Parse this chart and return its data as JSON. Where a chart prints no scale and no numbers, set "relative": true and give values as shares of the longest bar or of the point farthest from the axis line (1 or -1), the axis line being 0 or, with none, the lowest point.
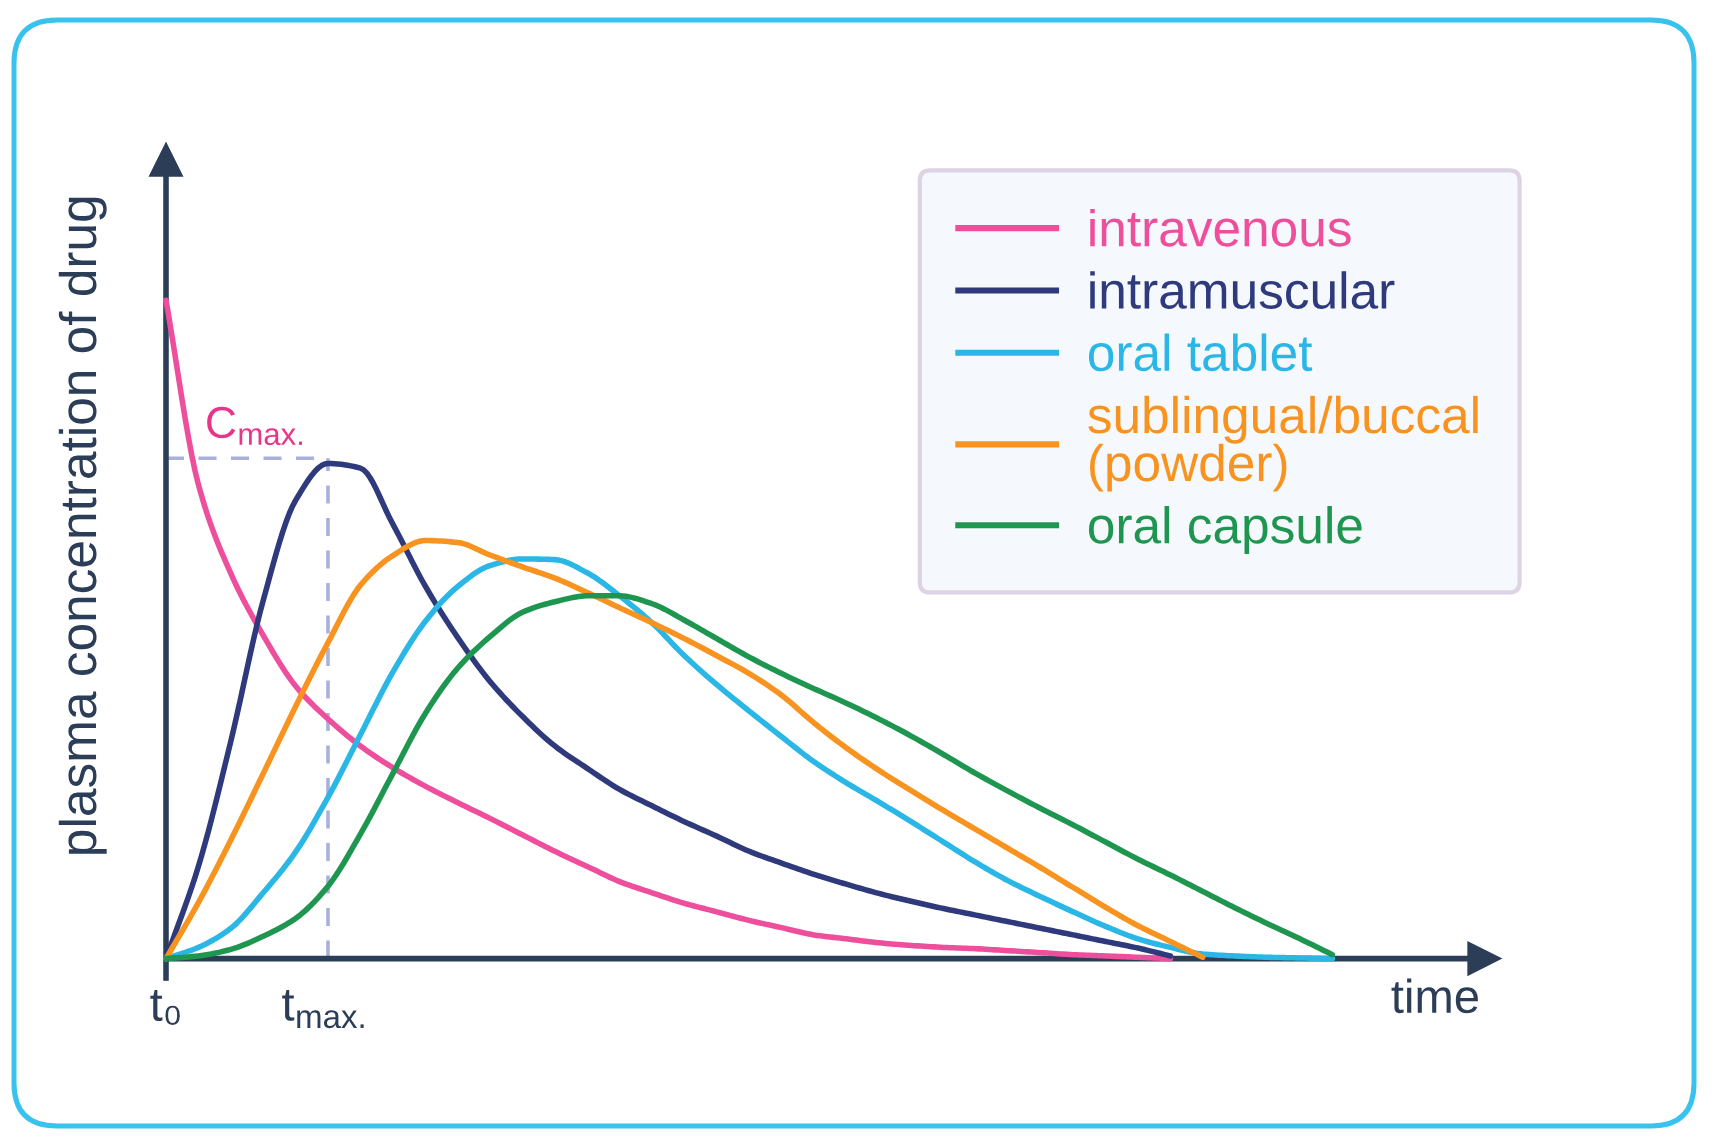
{
  "chart_data": {
    "type": "line",
    "relative": true,
    "xlabel": "time",
    "ylabel": "plasma concentration of drug",
    "categories": [
      "t₀",
      null,
      null,
      null,
      null,
      "t$_{max.}$",
      null,
      null,
      null,
      null,
      null,
      null,
      null,
      null,
      null,
      null,
      null,
      null,
      null,
      null,
      null,
      null,
      null,
      null,
      null,
      null,
      null,
      null,
      null,
      null,
      null,
      null,
      null,
      null,
      null,
      null,
      null
    ],
    "tick_labels": "x",
    "legend": "top right",
    "series": [
      {
        "name": "intravenous",
        "color": "#ee4f9c",
        "values": [
          1,
          0.72,
          0.585,
          0.491,
          0.414,
          0.364,
          0.323,
          0.29,
          0.262,
          0.237,
          0.213,
          0.188,
          0.163,
          0.14,
          0.117,
          0.1,
          0.084,
          0.071,
          0.058,
          0.047,
          0.036,
          0.03,
          0.024,
          0.02,
          0.017,
          0.015,
          0.012,
          0.009,
          0.006,
          0.004,
          0.002,
          0,
          null,
          null,
          null,
          null,
          null
        ]
      },
      {
        "name": "intramuscular",
        "color": "#2e3a7c",
        "values": [
          0,
          0.14,
          0.33,
          0.544,
          0.696,
          0.752,
          0.745,
          0.66,
          0.566,
          0.488,
          0.421,
          0.368,
          0.323,
          0.289,
          0.257,
          0.232,
          0.208,
          0.186,
          0.163,
          0.145,
          0.128,
          0.113,
          0.099,
          0.087,
          0.076,
          0.066,
          0.056,
          0.046,
          0.036,
          0.026,
          0.016,
          0.004,
          null,
          null,
          null,
          null,
          null
        ]
      },
      {
        "name": "oral tablet",
        "color": "#2ab7e6",
        "values": [
          0,
          0.017,
          0.046,
          0.1,
          0.162,
          0.245,
          0.34,
          0.435,
          0.512,
          0.565,
          0.597,
          0.607,
          0.606,
          0.586,
          0.551,
          0.51,
          0.46,
          0.416,
          0.376,
          0.337,
          0.299,
          0.267,
          0.238,
          0.208,
          0.177,
          0.146,
          0.118,
          0.094,
          0.071,
          0.049,
          0.03,
          0.017,
          0.007,
          0.004,
          0.002,
          0.001,
          0
        ]
      },
      {
        "name": "sublingual/buccal\n(powder)",
        "color": "#f7931e",
        "values": [
          0,
          0.085,
          0.18,
          0.281,
          0.383,
          0.48,
          0.567,
          0.612,
          0.635,
          0.632,
          0.613,
          0.595,
          0.578,
          0.556,
          0.533,
          0.51,
          0.486,
          0.46,
          0.433,
          0.4,
          0.358,
          0.32,
          0.286,
          0.255,
          0.225,
          0.196,
          0.167,
          0.138,
          0.108,
          0.078,
          0.05,
          0.026,
          0.002,
          null,
          null,
          null,
          null
        ]
      },
      {
        "name": "oral capsule",
        "color": "#1e9650",
        "values": [
          0,
          0.004,
          0.014,
          0.034,
          0.061,
          0.11,
          0.189,
          0.281,
          0.372,
          0.441,
          0.489,
          0.526,
          0.542,
          0.551,
          0.551,
          0.539,
          0.514,
          0.486,
          0.458,
          0.433,
          0.41,
          0.388,
          0.364,
          0.338,
          0.31,
          0.281,
          0.254,
          0.228,
          0.203,
          0.177,
          0.151,
          0.127,
          0.102,
          0.077,
          0.053,
          0.03,
          0.006
        ]
      }
    ],
    "ref_lines": [
      {
        "axis": "y",
        "value": 0.76,
        "label": "C$_{max.}$",
        "color": "#aab0dc",
        "line_style": "dashed"
      },
      {
        "axis": "x",
        "value": "t$_{max.}$",
        "color": "#aab0dc",
        "line_style": "dashed"
      }
    ]
  }
}
